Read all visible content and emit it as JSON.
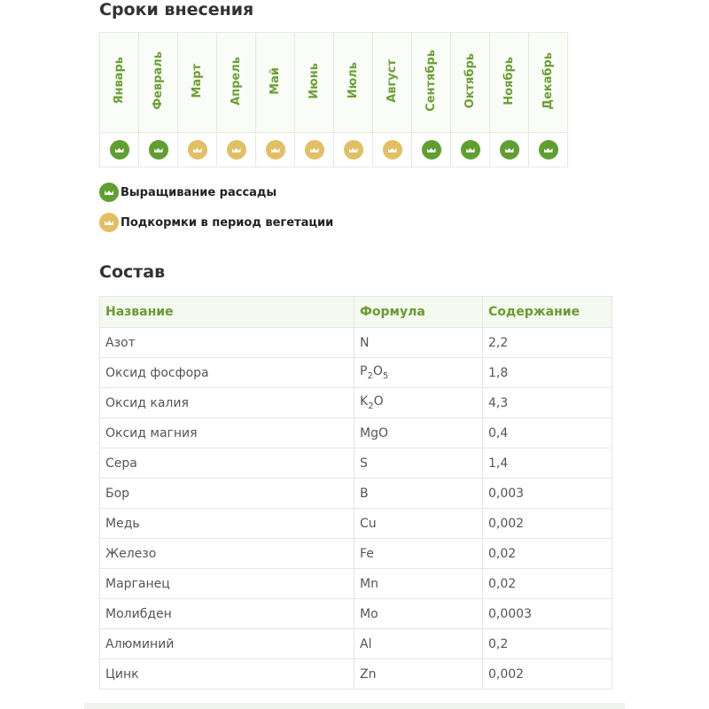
{
  "schedule": {
    "title": "Сроки внесения",
    "months": [
      {
        "label": "Январь",
        "type": "green"
      },
      {
        "label": "Февраль",
        "type": "green"
      },
      {
        "label": "Март",
        "type": "gold"
      },
      {
        "label": "Апрель",
        "type": "gold"
      },
      {
        "label": "Май",
        "type": "gold"
      },
      {
        "label": "Июнь",
        "type": "gold"
      },
      {
        "label": "Июль",
        "type": "gold"
      },
      {
        "label": "Август",
        "type": "gold"
      },
      {
        "label": "Сентябрь",
        "type": "green"
      },
      {
        "label": "Октябрь",
        "type": "green"
      },
      {
        "label": "Ноябрь",
        "type": "green"
      },
      {
        "label": "Декабрь",
        "type": "green"
      }
    ],
    "legend": [
      {
        "label": "Выращивание рассады",
        "type": "green"
      },
      {
        "label": "Подкормки в период вегетации",
        "type": "gold"
      }
    ],
    "colors": {
      "green": "#5e9f2f",
      "gold": "#e2bf62"
    }
  },
  "composition": {
    "title": "Состав",
    "headers": [
      "Название",
      "Формула",
      "Содержание"
    ],
    "rows": [
      [
        "Азот",
        "N",
        "2,2"
      ],
      [
        "Оксид фосфора",
        "P2O5",
        "1,8"
      ],
      [
        "Оксид калия",
        "K2O",
        "4,3"
      ],
      [
        "Оксид магния",
        "MgO",
        "0,4"
      ],
      [
        "Сера",
        "S",
        "1,4"
      ],
      [
        "Бор",
        "B",
        "0,003"
      ],
      [
        "Медь",
        "Cu",
        "0,002"
      ],
      [
        "Железо",
        "Fe",
        "0,02"
      ],
      [
        "Марганец",
        "Mn",
        "0,02"
      ],
      [
        "Молибден",
        "Mo",
        "0,0003"
      ],
      [
        "Алюминий",
        "Al",
        "0,2"
      ],
      [
        "Цинк",
        "Zn",
        "0,002"
      ]
    ]
  }
}
